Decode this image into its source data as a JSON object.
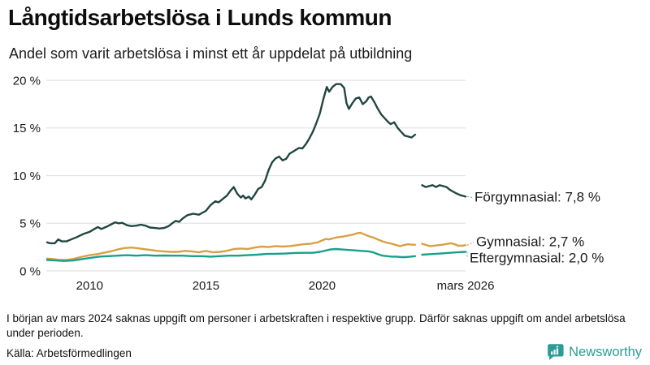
{
  "header": {
    "title": "Långtidsarbetslösa i Lunds kommun",
    "subtitle": "Andel som varit arbetslösa i minst ett år uppdelat på utbildning"
  },
  "colors": {
    "forgymnasial": "#21473f",
    "gymnasial": "#d9a043",
    "eftergymnasial": "#18a08b",
    "grid": "#e2e2e8",
    "tick_text": "#1a1a1a",
    "label_text": "#1a1a1a",
    "connector": "#999999",
    "brand_teal": "#2b9c96"
  },
  "chart_data": {
    "type": "line",
    "title": "Långtidsarbetslösa i Lunds kommun",
    "subtitle": "Andel som varit arbetslösa i minst ett år uppdelat på utbildning",
    "xlabel": "",
    "ylabel": "",
    "unit": "%",
    "x_domain": [
      2008.17,
      2026.17
    ],
    "ylim": [
      0,
      20
    ],
    "grid": "horizontal-only",
    "legend_position": "end-of-line-labels-right",
    "yticks": [
      {
        "v": 0,
        "label": "0 %"
      },
      {
        "v": 5,
        "label": "5 %"
      },
      {
        "v": 10,
        "label": "10 %"
      },
      {
        "v": 15,
        "label": "15 %"
      },
      {
        "v": 20,
        "label": "20 %"
      }
    ],
    "xticks": [
      {
        "v": 2010,
        "label": "2010"
      },
      {
        "v": 2015,
        "label": "2015"
      },
      {
        "v": 2020,
        "label": "2020"
      },
      {
        "v": 2026.17,
        "label": "mars 2026"
      }
    ],
    "data_gap": {
      "from": 2024.0,
      "to": 2024.3,
      "reason": "saknas uppgift mars 2024"
    },
    "series": [
      {
        "id": "forgymnasial",
        "name": "Förgymnasial",
        "end_label": "Förgymnasial: 7,8 %",
        "end_value_text": "7,8 %",
        "color": "#21473f",
        "segments": [
          [
            [
              2008.17,
              3.0
            ],
            [
              2008.3,
              2.9
            ],
            [
              2008.5,
              2.9
            ],
            [
              2008.65,
              3.3
            ],
            [
              2008.8,
              3.1
            ],
            [
              2009.0,
              3.1
            ],
            [
              2009.2,
              3.3
            ],
            [
              2009.45,
              3.55
            ],
            [
              2009.7,
              3.85
            ],
            [
              2010.0,
              4.1
            ],
            [
              2010.2,
              4.4
            ],
            [
              2010.35,
              4.6
            ],
            [
              2010.5,
              4.4
            ],
            [
              2010.7,
              4.6
            ],
            [
              2010.9,
              4.85
            ],
            [
              2011.1,
              5.1
            ],
            [
              2011.25,
              5.0
            ],
            [
              2011.4,
              5.05
            ],
            [
              2011.6,
              4.8
            ],
            [
              2011.8,
              4.7
            ],
            [
              2012.0,
              4.75
            ],
            [
              2012.2,
              4.85
            ],
            [
              2012.4,
              4.75
            ],
            [
              2012.6,
              4.55
            ],
            [
              2012.8,
              4.5
            ],
            [
              2013.0,
              4.45
            ],
            [
              2013.2,
              4.5
            ],
            [
              2013.4,
              4.7
            ],
            [
              2013.55,
              5.0
            ],
            [
              2013.7,
              5.25
            ],
            [
              2013.85,
              5.15
            ],
            [
              2014.0,
              5.5
            ],
            [
              2014.2,
              5.85
            ],
            [
              2014.45,
              6.0
            ],
            [
              2014.7,
              5.9
            ],
            [
              2015.0,
              6.3
            ],
            [
              2015.2,
              6.9
            ],
            [
              2015.4,
              7.3
            ],
            [
              2015.55,
              7.2
            ],
            [
              2015.75,
              7.6
            ],
            [
              2015.9,
              7.9
            ],
            [
              2016.05,
              8.4
            ],
            [
              2016.2,
              8.8
            ],
            [
              2016.35,
              8.1
            ],
            [
              2016.5,
              7.7
            ],
            [
              2016.6,
              7.9
            ],
            [
              2016.7,
              7.6
            ],
            [
              2016.85,
              7.8
            ],
            [
              2016.95,
              7.5
            ],
            [
              2017.1,
              8.0
            ],
            [
              2017.25,
              8.6
            ],
            [
              2017.4,
              8.8
            ],
            [
              2017.55,
              9.5
            ],
            [
              2017.7,
              10.6
            ],
            [
              2017.85,
              11.4
            ],
            [
              2018.0,
              11.8
            ],
            [
              2018.15,
              12.0
            ],
            [
              2018.3,
              11.6
            ],
            [
              2018.45,
              11.75
            ],
            [
              2018.6,
              12.3
            ],
            [
              2018.8,
              12.6
            ],
            [
              2019.0,
              12.9
            ],
            [
              2019.15,
              12.85
            ],
            [
              2019.3,
              13.3
            ],
            [
              2019.45,
              13.9
            ],
            [
              2019.6,
              14.6
            ],
            [
              2019.75,
              15.5
            ],
            [
              2019.9,
              16.5
            ],
            [
              2020.05,
              18.0
            ],
            [
              2020.2,
              19.3
            ],
            [
              2020.3,
              18.8
            ],
            [
              2020.45,
              19.3
            ],
            [
              2020.6,
              19.6
            ],
            [
              2020.8,
              19.6
            ],
            [
              2020.95,
              19.2
            ],
            [
              2021.05,
              17.6
            ],
            [
              2021.15,
              17.0
            ],
            [
              2021.3,
              17.6
            ],
            [
              2021.45,
              18.1
            ],
            [
              2021.6,
              18.2
            ],
            [
              2021.75,
              17.5
            ],
            [
              2021.9,
              17.8
            ],
            [
              2022.0,
              18.2
            ],
            [
              2022.1,
              18.3
            ],
            [
              2022.25,
              17.7
            ],
            [
              2022.4,
              17.0
            ],
            [
              2022.55,
              16.4
            ],
            [
              2022.7,
              16.0
            ],
            [
              2022.85,
              15.6
            ],
            [
              2022.95,
              15.4
            ],
            [
              2023.1,
              15.6
            ],
            [
              2023.25,
              15.0
            ],
            [
              2023.4,
              14.6
            ],
            [
              2023.55,
              14.2
            ],
            [
              2023.7,
              14.1
            ],
            [
              2023.85,
              14.0
            ],
            [
              2024.0,
              14.3
            ]
          ],
          [
            [
              2024.3,
              9.0
            ],
            [
              2024.45,
              8.8
            ],
            [
              2024.6,
              8.9
            ],
            [
              2024.75,
              9.0
            ],
            [
              2024.9,
              8.8
            ],
            [
              2025.05,
              9.0
            ],
            [
              2025.2,
              8.9
            ],
            [
              2025.35,
              8.8
            ],
            [
              2025.5,
              8.5
            ],
            [
              2025.65,
              8.3
            ],
            [
              2025.8,
              8.1
            ],
            [
              2025.95,
              7.95
            ],
            [
              2026.17,
              7.8
            ]
          ]
        ]
      },
      {
        "id": "gymnasial",
        "name": "Gymnasial",
        "end_label": "Gymnasial: 2,7 %",
        "end_value_text": "2,7 %",
        "color": "#d9a043",
        "segments": [
          [
            [
              2008.17,
              1.3
            ],
            [
              2008.4,
              1.25
            ],
            [
              2008.7,
              1.15
            ],
            [
              2009.0,
              1.15
            ],
            [
              2009.3,
              1.25
            ],
            [
              2009.6,
              1.45
            ],
            [
              2009.8,
              1.55
            ],
            [
              2010.0,
              1.65
            ],
            [
              2010.3,
              1.75
            ],
            [
              2010.6,
              1.9
            ],
            [
              2010.9,
              2.05
            ],
            [
              2011.2,
              2.25
            ],
            [
              2011.5,
              2.4
            ],
            [
              2011.8,
              2.45
            ],
            [
              2012.0,
              2.4
            ],
            [
              2012.3,
              2.3
            ],
            [
              2012.6,
              2.2
            ],
            [
              2012.9,
              2.1
            ],
            [
              2013.2,
              2.05
            ],
            [
              2013.5,
              2.0
            ],
            [
              2013.8,
              2.0
            ],
            [
              2014.1,
              2.1
            ],
            [
              2014.4,
              2.05
            ],
            [
              2014.7,
              1.95
            ],
            [
              2015.0,
              2.1
            ],
            [
              2015.3,
              1.95
            ],
            [
              2015.6,
              2.0
            ],
            [
              2015.9,
              2.1
            ],
            [
              2016.2,
              2.3
            ],
            [
              2016.5,
              2.35
            ],
            [
              2016.8,
              2.3
            ],
            [
              2017.1,
              2.45
            ],
            [
              2017.4,
              2.55
            ],
            [
              2017.7,
              2.5
            ],
            [
              2018.0,
              2.6
            ],
            [
              2018.3,
              2.55
            ],
            [
              2018.6,
              2.6
            ],
            [
              2018.9,
              2.7
            ],
            [
              2019.2,
              2.8
            ],
            [
              2019.5,
              2.85
            ],
            [
              2019.8,
              3.0
            ],
            [
              2020.0,
              3.2
            ],
            [
              2020.15,
              3.35
            ],
            [
              2020.3,
              3.3
            ],
            [
              2020.5,
              3.45
            ],
            [
              2020.7,
              3.55
            ],
            [
              2020.9,
              3.6
            ],
            [
              2021.1,
              3.7
            ],
            [
              2021.3,
              3.8
            ],
            [
              2021.5,
              3.95
            ],
            [
              2021.65,
              4.0
            ],
            [
              2021.8,
              3.85
            ],
            [
              2022.0,
              3.65
            ],
            [
              2022.2,
              3.5
            ],
            [
              2022.4,
              3.3
            ],
            [
              2022.6,
              3.1
            ],
            [
              2022.8,
              2.95
            ],
            [
              2023.0,
              2.85
            ],
            [
              2023.2,
              2.7
            ],
            [
              2023.35,
              2.6
            ],
            [
              2023.5,
              2.7
            ],
            [
              2023.7,
              2.8
            ],
            [
              2023.85,
              2.75
            ],
            [
              2024.0,
              2.75
            ]
          ],
          [
            [
              2024.3,
              2.85
            ],
            [
              2024.5,
              2.7
            ],
            [
              2024.65,
              2.6
            ],
            [
              2024.8,
              2.65
            ],
            [
              2025.0,
              2.7
            ],
            [
              2025.2,
              2.75
            ],
            [
              2025.4,
              2.85
            ],
            [
              2025.55,
              2.9
            ],
            [
              2025.7,
              2.8
            ],
            [
              2025.85,
              2.65
            ],
            [
              2026.0,
              2.65
            ],
            [
              2026.17,
              2.7
            ]
          ]
        ]
      },
      {
        "id": "eftergymnasial",
        "name": "Eftergymnasial",
        "end_label": "Eftergymnasial: 2,0 %",
        "end_value_text": "2,0 %",
        "color": "#18a08b",
        "segments": [
          [
            [
              2008.17,
              1.15
            ],
            [
              2008.5,
              1.1
            ],
            [
              2008.9,
              1.05
            ],
            [
              2009.3,
              1.1
            ],
            [
              2009.7,
              1.25
            ],
            [
              2010.0,
              1.35
            ],
            [
              2010.4,
              1.5
            ],
            [
              2010.8,
              1.55
            ],
            [
              2011.2,
              1.6
            ],
            [
              2011.6,
              1.65
            ],
            [
              2012.0,
              1.6
            ],
            [
              2012.4,
              1.65
            ],
            [
              2012.8,
              1.6
            ],
            [
              2013.2,
              1.62
            ],
            [
              2013.6,
              1.6
            ],
            [
              2014.0,
              1.6
            ],
            [
              2014.4,
              1.55
            ],
            [
              2014.8,
              1.55
            ],
            [
              2015.2,
              1.5
            ],
            [
              2015.6,
              1.55
            ],
            [
              2016.0,
              1.6
            ],
            [
              2016.4,
              1.6
            ],
            [
              2016.8,
              1.65
            ],
            [
              2017.2,
              1.7
            ],
            [
              2017.6,
              1.78
            ],
            [
              2018.0,
              1.8
            ],
            [
              2018.4,
              1.82
            ],
            [
              2018.8,
              1.88
            ],
            [
              2019.2,
              1.9
            ],
            [
              2019.6,
              1.9
            ],
            [
              2019.9,
              2.0
            ],
            [
              2020.1,
              2.1
            ],
            [
              2020.35,
              2.25
            ],
            [
              2020.6,
              2.3
            ],
            [
              2020.85,
              2.25
            ],
            [
              2021.1,
              2.2
            ],
            [
              2021.4,
              2.15
            ],
            [
              2021.7,
              2.1
            ],
            [
              2022.0,
              2.05
            ],
            [
              2022.2,
              1.95
            ],
            [
              2022.4,
              1.75
            ],
            [
              2022.6,
              1.6
            ],
            [
              2022.8,
              1.55
            ],
            [
              2023.0,
              1.5
            ],
            [
              2023.2,
              1.5
            ],
            [
              2023.4,
              1.45
            ],
            [
              2023.6,
              1.45
            ],
            [
              2023.8,
              1.5
            ],
            [
              2024.0,
              1.55
            ]
          ],
          [
            [
              2024.3,
              1.7
            ],
            [
              2024.6,
              1.75
            ],
            [
              2024.9,
              1.8
            ],
            [
              2025.2,
              1.85
            ],
            [
              2025.5,
              1.9
            ],
            [
              2025.8,
              1.95
            ],
            [
              2026.17,
              2.0
            ]
          ]
        ]
      }
    ]
  },
  "footer": {
    "note": "I början av mars 2024 saknas uppgift om personer i arbetskraften i respektive grupp. Därför saknas uppgift om andel arbetslösa under perioden.",
    "source": "Källa: Arbetsförmedlingen",
    "brand": "Newsworthy"
  }
}
